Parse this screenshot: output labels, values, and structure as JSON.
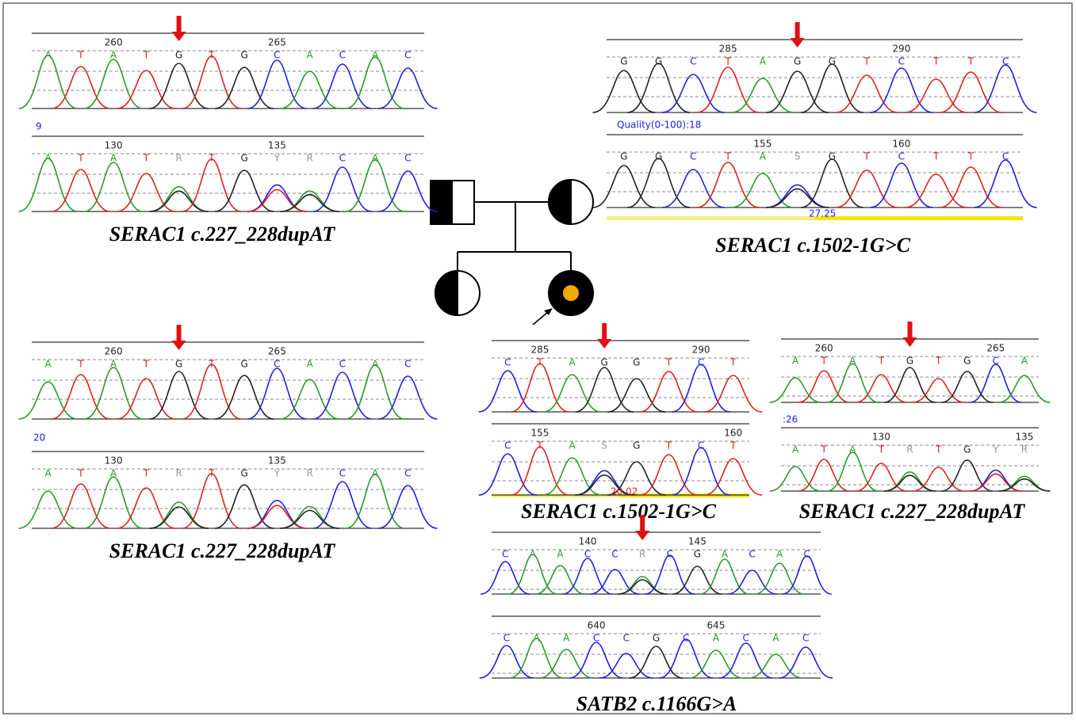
{
  "panels": [
    {
      "traces": [
        {
          "numbers": [
            "260",
            "265"
          ],
          "bases": [
            "A",
            "T",
            "A",
            "T",
            "G",
            "T",
            "G",
            "C",
            "A",
            "C",
            "A",
            "C"
          ]
        },
        {
          "numbers": [
            "130",
            "135"
          ],
          "bases": [
            "A",
            "T",
            "A",
            "T",
            "R",
            "T",
            "G",
            "Y",
            "R",
            "C",
            "A",
            "C"
          ]
        }
      ],
      "notes": [
        "9"
      ],
      "caption": "SERAC1 c.227_228dupAT"
    },
    {
      "traces": [
        {
          "numbers": [
            "285",
            "290"
          ],
          "bases": [
            "G",
            "G",
            "C",
            "T",
            "A",
            "G",
            "G",
            "T",
            "C",
            "T",
            "T",
            "C"
          ]
        },
        {
          "numbers": [
            "155",
            "160"
          ],
          "bases": [
            "G",
            "G",
            "C",
            "T",
            "A",
            "S",
            "G",
            "T",
            "C",
            "T",
            "T",
            "C"
          ]
        }
      ],
      "notes": [
        "Quality(0-100):18",
        "27.25"
      ],
      "caption": "SERAC1 c.1502-1G>C"
    },
    {
      "traces": [
        {
          "numbers": [
            "260",
            "265"
          ],
          "bases": [
            "A",
            "T",
            "A",
            "T",
            "G",
            "T",
            "G",
            "C",
            "A",
            "C",
            "A",
            "C"
          ]
        },
        {
          "numbers": [
            "130",
            "135"
          ],
          "bases": [
            "A",
            "T",
            "A",
            "T",
            "R",
            "T",
            "G",
            "Y",
            "R",
            "C",
            "A",
            "C"
          ]
        }
      ],
      "notes": [
        "20"
      ],
      "caption": "SERAC1 c.227_228dupAT"
    },
    {
      "traces": [
        {
          "numbers": [
            "285",
            "290"
          ],
          "bases": [
            "C",
            "T",
            "A",
            "G",
            "G",
            "T",
            "C",
            "T"
          ]
        },
        {
          "numbers": [
            "155",
            "160"
          ],
          "bases": [
            "C",
            "T",
            "A",
            "S",
            "G",
            "T",
            "C",
            "T"
          ]
        }
      ],
      "notes": [
        "20.02"
      ],
      "caption": "SERAC1 c.1502-1G>C"
    },
    {
      "traces": [
        {
          "numbers": [
            "260",
            "265"
          ],
          "bases": [
            "A",
            "T",
            "A",
            "T",
            "G",
            "T",
            "G",
            "C",
            "A"
          ]
        },
        {
          "numbers": [
            "130",
            "135"
          ],
          "bases": [
            "A",
            "T",
            "A",
            "T",
            "R",
            "T",
            "G",
            "Y",
            "R"
          ]
        }
      ],
      "notes": [
        ":26"
      ],
      "caption": "SERAC1 c.227_228dupAT"
    },
    {
      "traces": [
        {
          "numbers": [
            "140",
            "145"
          ],
          "bases": [
            "C",
            "A",
            "A",
            "C",
            "C",
            "R",
            "C",
            "G",
            "A",
            "C",
            "A",
            "C"
          ]
        },
        {
          "numbers": [
            "640",
            "645"
          ],
          "bases": [
            "C",
            "A",
            "A",
            "C",
            "C",
            "G",
            "C",
            "A",
            "C",
            "A",
            "C"
          ]
        }
      ],
      "notes": [],
      "caption": "SATB2 c.1166G>A"
    }
  ]
}
